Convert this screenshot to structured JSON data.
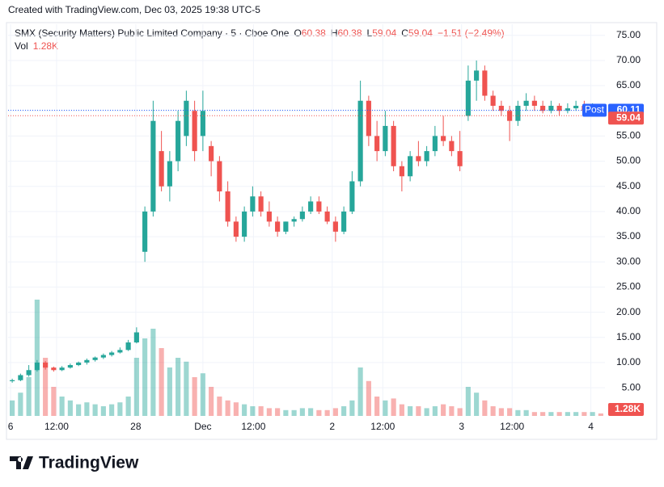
{
  "header": {
    "created": "Created with TradingView.com, Dec 03, 2025 19:38 UTC-5"
  },
  "legend": {
    "symbol": "SMX (Security Matters) Public Limited Company · 5 · Cboe One",
    "open_label": "O",
    "open": 60.38,
    "high_label": "H",
    "high": 60.38,
    "low_label": "L",
    "low": 59.04,
    "close_label": "C",
    "close": 59.04,
    "change": "−1.51 (−2.49%)",
    "volume_label": "Vol",
    "volume": {
      "value": 1.28,
      "label": "1.28K"
    }
  },
  "chart_data": {
    "type": "candlestick",
    "up_color": "#26a69a",
    "down_color": "#ef5350",
    "ohlc": [
      [
        6.3,
        6.8,
        6.0,
        6.5
      ],
      [
        6.5,
        7.8,
        6.3,
        7.5
      ],
      [
        7.5,
        9.5,
        7.2,
        8.5
      ],
      [
        8.5,
        10.5,
        8.2,
        10
      ],
      [
        10,
        10.3,
        8.6,
        9
      ],
      [
        9,
        9.2,
        8.2,
        8.5
      ],
      [
        8.5,
        9.3,
        8.3,
        9
      ],
      [
        9,
        9.8,
        8.8,
        9.5
      ],
      [
        9.5,
        10.2,
        9.3,
        10
      ],
      [
        10,
        10.8,
        9.6,
        10.5
      ],
      [
        10.5,
        11.2,
        10.2,
        11
      ],
      [
        11,
        11.8,
        10.7,
        11.5
      ],
      [
        11.5,
        12.3,
        11.2,
        12
      ],
      [
        12,
        13,
        11.8,
        12.5
      ],
      [
        12.5,
        14.5,
        12.3,
        14
      ],
      [
        14,
        17,
        13.8,
        16
      ],
      [
        32,
        41,
        30,
        40
      ],
      [
        40,
        62,
        39,
        58
      ],
      [
        52,
        56,
        44,
        45
      ],
      [
        45,
        52,
        42,
        50
      ],
      [
        50,
        60,
        48,
        58
      ],
      [
        55,
        64,
        53,
        62
      ],
      [
        60,
        62,
        50,
        52
      ],
      [
        55,
        64,
        52,
        60
      ],
      [
        53,
        54,
        47,
        50
      ],
      [
        50,
        51,
        42,
        44
      ],
      [
        44,
        46,
        37,
        38
      ],
      [
        38,
        39,
        34,
        35
      ],
      [
        35,
        41,
        34,
        40
      ],
      [
        40,
        45,
        39,
        43
      ],
      [
        43,
        44,
        39,
        40
      ],
      [
        40,
        42,
        37,
        38
      ],
      [
        38,
        39,
        35,
        36
      ],
      [
        36,
        38,
        35.5,
        38
      ],
      [
        38,
        39,
        37,
        38.5
      ],
      [
        38.5,
        41,
        38,
        40
      ],
      [
        40,
        43,
        39.5,
        42
      ],
      [
        42,
        43,
        39.5,
        40
      ],
      [
        40,
        41,
        37.5,
        38
      ],
      [
        38,
        39,
        34,
        36
      ],
      [
        36,
        41,
        35.5,
        40
      ],
      [
        40,
        48,
        39.5,
        46
      ],
      [
        46,
        66,
        45,
        62
      ],
      [
        62,
        63,
        53,
        55
      ],
      [
        55,
        58,
        50,
        52
      ],
      [
        52,
        60,
        51,
        57
      ],
      [
        57,
        58,
        48,
        49
      ],
      [
        49,
        50,
        44,
        47
      ],
      [
        47,
        52,
        46,
        51
      ],
      [
        51,
        54,
        49,
        50
      ],
      [
        50,
        53,
        49,
        52
      ],
      [
        52,
        57,
        51,
        55
      ],
      [
        55,
        59,
        53,
        54
      ],
      [
        54,
        55,
        51,
        52
      ],
      [
        52,
        56,
        48,
        49
      ],
      [
        59,
        69,
        58,
        66
      ],
      [
        66,
        70,
        62,
        68
      ],
      [
        68,
        69,
        62,
        63
      ],
      [
        63,
        64,
        60,
        61
      ],
      [
        61,
        62,
        59,
        60
      ],
      [
        60,
        61,
        54,
        58
      ],
      [
        58,
        62,
        57,
        61
      ],
      [
        61,
        63.5,
        60,
        62
      ],
      [
        62,
        63,
        60,
        61
      ],
      [
        61,
        62,
        59.5,
        60
      ],
      [
        60,
        62,
        59.5,
        61
      ],
      [
        61,
        61.5,
        59,
        60
      ],
      [
        60,
        61.5,
        59.5,
        60.5
      ],
      [
        60.5,
        62,
        60,
        61
      ],
      [
        61,
        62,
        59.5,
        60
      ],
      [
        60,
        61.5,
        59.5,
        60.5
      ],
      [
        60.38,
        60.38,
        59.04,
        59.04
      ]
    ],
    "volume": [
      8,
      12,
      20,
      60,
      30,
      15,
      10,
      8,
      6,
      7,
      6,
      5,
      6,
      7,
      10,
      30,
      40,
      45,
      35,
      25,
      30,
      28,
      20,
      22,
      15,
      10,
      8,
      7,
      6,
      5,
      5,
      4,
      4,
      3,
      3,
      4,
      4,
      3,
      3,
      4,
      5,
      8,
      25,
      18,
      10,
      8,
      9,
      6,
      5,
      5,
      4,
      5,
      6,
      5,
      4,
      15,
      12,
      8,
      5,
      4,
      4,
      3,
      3,
      2,
      2,
      2,
      2,
      2,
      2,
      2,
      2,
      1.28
    ],
    "xlim": [
      0,
      72
    ],
    "xticks": [
      {
        "value": 0.3,
        "label": "6"
      },
      {
        "value": 5.85,
        "label": "12:00"
      },
      {
        "value": 15.4,
        "label": "28"
      },
      {
        "value": 23.5,
        "label": "Dec"
      },
      {
        "value": 29.6,
        "label": "12:00"
      },
      {
        "value": 39.1,
        "label": "2"
      },
      {
        "value": 45.2,
        "label": "12:00"
      },
      {
        "value": 54.7,
        "label": "3"
      },
      {
        "value": 60.8,
        "label": "12:00"
      },
      {
        "value": 70.3,
        "label": "4"
      }
    ],
    "ylim": [
      -0.6,
      77.2
    ],
    "yticks": [
      {
        "value": 5,
        "label": "5.00"
      },
      {
        "value": 10,
        "label": "10.00"
      },
      {
        "value": 15,
        "label": "15.00"
      },
      {
        "value": 20,
        "label": "20.00"
      },
      {
        "value": 25,
        "label": "25.00"
      },
      {
        "value": 30,
        "label": "30.00"
      },
      {
        "value": 35,
        "label": "35.00"
      },
      {
        "value": 40,
        "label": "40.00"
      },
      {
        "value": 45,
        "label": "45.00"
      },
      {
        "value": 50,
        "label": "50.00"
      },
      {
        "value": 55,
        "label": "55.00"
      },
      {
        "value": 60,
        "label": "60.00"
      },
      {
        "value": 65,
        "label": "65.00"
      },
      {
        "value": 70,
        "label": "70.00"
      },
      {
        "value": 75,
        "label": "75.00"
      }
    ],
    "y2lim": [
      0,
      100
    ],
    "grid": true,
    "post_label": "Post",
    "post_price": 60.11,
    "post_color": "#2962ff",
    "last_price": 59.04
  },
  "footer": {
    "brand": "TradingView"
  }
}
